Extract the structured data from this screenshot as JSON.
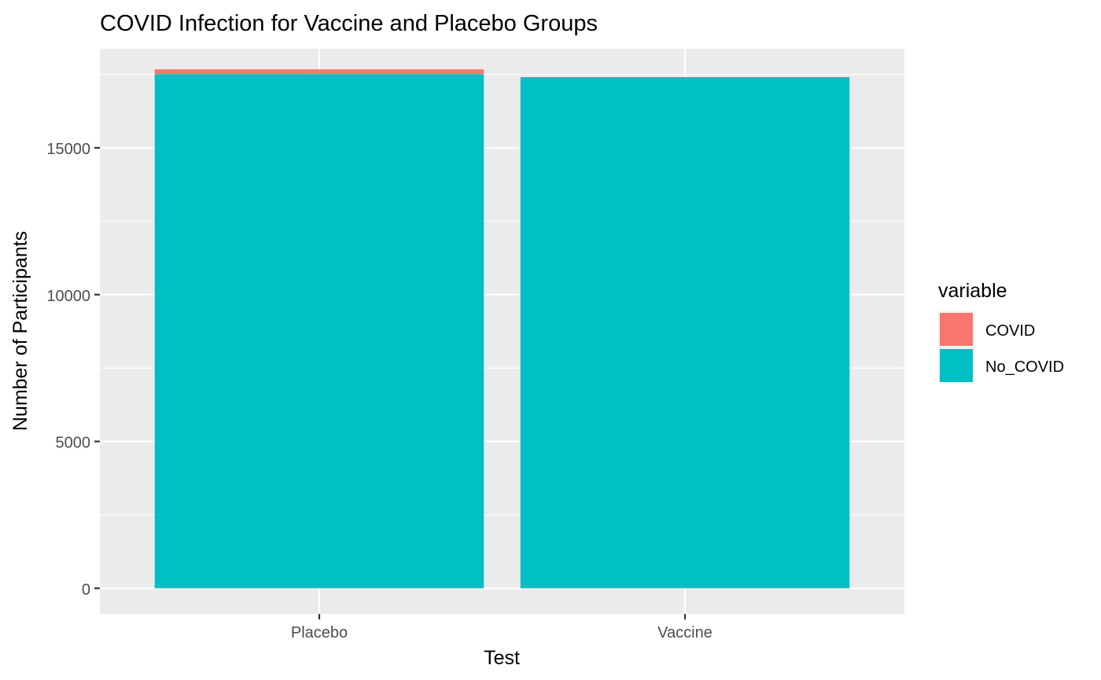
{
  "chart_data": {
    "type": "bar",
    "stacked": true,
    "title": "COVID Infection for Vaccine and Placebo Groups",
    "xlabel": "Test",
    "ylabel": "Number of Participants",
    "categories": [
      "Placebo",
      "Vaccine"
    ],
    "series": [
      {
        "name": "COVID",
        "color": "#F8766D",
        "values": [
          162,
          8
        ]
      },
      {
        "name": "No_COVID",
        "color": "#00BFC4",
        "values": [
          17511,
          17403
        ]
      }
    ],
    "ylim": [
      -875,
      18375
    ],
    "yticks": [
      0,
      5000,
      10000,
      15000
    ],
    "ytick_labels": [
      "0",
      "5000",
      "10000",
      "15000"
    ],
    "grid": true,
    "legend": {
      "title": "variable",
      "position": "right"
    }
  }
}
